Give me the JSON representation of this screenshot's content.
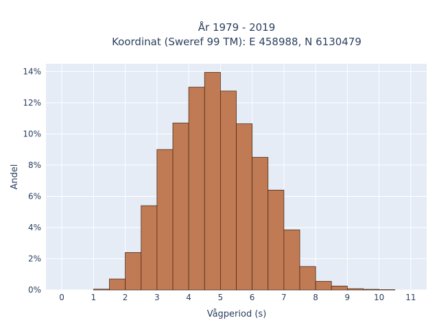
{
  "chart_data": {
    "type": "bar",
    "title_line1": "År 1979 - 2019",
    "title_line2": "Koordinat (Sweref 99 TM): E 458988, N 6130479",
    "xlabel": "Vågperiod (s)",
    "ylabel": "Andel",
    "xlim": [
      -0.5,
      11.5
    ],
    "ylim": [
      0,
      14.5
    ],
    "x_ticks": [
      "0",
      "1",
      "2",
      "3",
      "4",
      "5",
      "6",
      "7",
      "8",
      "9",
      "10",
      "11"
    ],
    "y_ticks": [
      "0%",
      "2%",
      "4%",
      "6%",
      "8%",
      "10%",
      "12%",
      "14%"
    ],
    "bin_width": 0.5,
    "bins": [
      {
        "x0": 1.0,
        "value": 0.05
      },
      {
        "x0": 1.5,
        "value": 0.7
      },
      {
        "x0": 2.0,
        "value": 2.4
      },
      {
        "x0": 2.5,
        "value": 5.4
      },
      {
        "x0": 3.0,
        "value": 9.0
      },
      {
        "x0": 3.5,
        "value": 10.7
      },
      {
        "x0": 4.0,
        "value": 13.0
      },
      {
        "x0": 4.5,
        "value": 13.95
      },
      {
        "x0": 5.0,
        "value": 12.75
      },
      {
        "x0": 5.5,
        "value": 10.65
      },
      {
        "x0": 6.0,
        "value": 8.5
      },
      {
        "x0": 6.5,
        "value": 6.4
      },
      {
        "x0": 7.0,
        "value": 3.85
      },
      {
        "x0": 7.5,
        "value": 1.5
      },
      {
        "x0": 8.0,
        "value": 0.55
      },
      {
        "x0": 8.5,
        "value": 0.25
      },
      {
        "x0": 9.0,
        "value": 0.08
      },
      {
        "x0": 9.5,
        "value": 0.04
      },
      {
        "x0": 10.0,
        "value": 0.02
      }
    ],
    "grid": true,
    "colors": {
      "plot_bg": "#e5ecf6",
      "grid": "#ffffff",
      "bar_fill": "#c07b55",
      "bar_edge": "#4a2a18"
    }
  }
}
